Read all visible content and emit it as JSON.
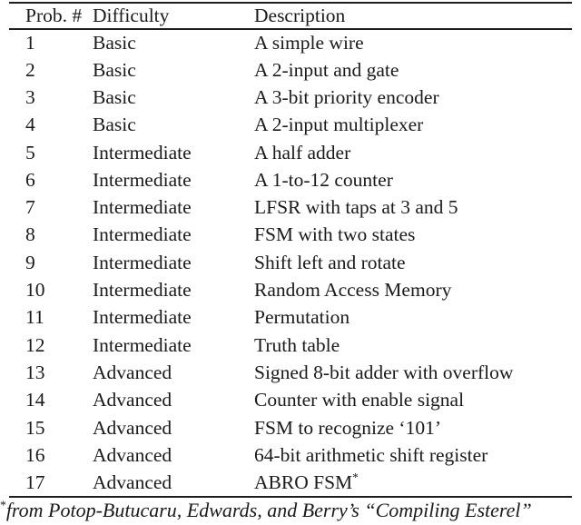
{
  "page": {
    "background": "#ffffff",
    "text_color": "#1a1a1a",
    "rule_color": "#1e1e1e"
  },
  "table": {
    "columns": [
      {
        "key": "prob",
        "label": "Prob. #"
      },
      {
        "key": "difficulty",
        "label": "Difficulty"
      },
      {
        "key": "description",
        "label": "Description"
      }
    ],
    "rows": [
      {
        "prob": "1",
        "difficulty": "Basic",
        "description": "A simple wire"
      },
      {
        "prob": "2",
        "difficulty": "Basic",
        "description": "A 2-input and gate"
      },
      {
        "prob": "3",
        "difficulty": "Basic",
        "description": "A 3-bit priority encoder"
      },
      {
        "prob": "4",
        "difficulty": "Basic",
        "description": "A 2-input multiplexer"
      },
      {
        "prob": "5",
        "difficulty": "Intermediate",
        "description": "A half adder"
      },
      {
        "prob": "6",
        "difficulty": "Intermediate",
        "description": "A 1-to-12 counter"
      },
      {
        "prob": "7",
        "difficulty": "Intermediate",
        "description": "LFSR with taps at 3 and 5"
      },
      {
        "prob": "8",
        "difficulty": "Intermediate",
        "description": "FSM with two states"
      },
      {
        "prob": "9",
        "difficulty": "Intermediate",
        "description": "Shift left and rotate"
      },
      {
        "prob": "10",
        "difficulty": "Intermediate",
        "description": "Random Access Memory"
      },
      {
        "prob": "11",
        "difficulty": "Intermediate",
        "description": "Permutation"
      },
      {
        "prob": "12",
        "difficulty": "Intermediate",
        "description": "Truth table"
      },
      {
        "prob": "13",
        "difficulty": "Advanced",
        "description": "Signed 8-bit adder with overflow"
      },
      {
        "prob": "14",
        "difficulty": "Advanced",
        "description": "Counter with enable signal"
      },
      {
        "prob": "15",
        "difficulty": "Advanced",
        "description": "FSM to recognize ‘101’"
      },
      {
        "prob": "16",
        "difficulty": "Advanced",
        "description": "64-bit arithmetic shift register"
      },
      {
        "prob": "17",
        "difficulty": "Advanced",
        "description": "ABRO FSM",
        "description_sup": "*"
      }
    ],
    "footnote": {
      "marker": "*",
      "text": "from Potop-Butucaru, Edwards, and Berry’s “Compiling Esterel”"
    }
  }
}
